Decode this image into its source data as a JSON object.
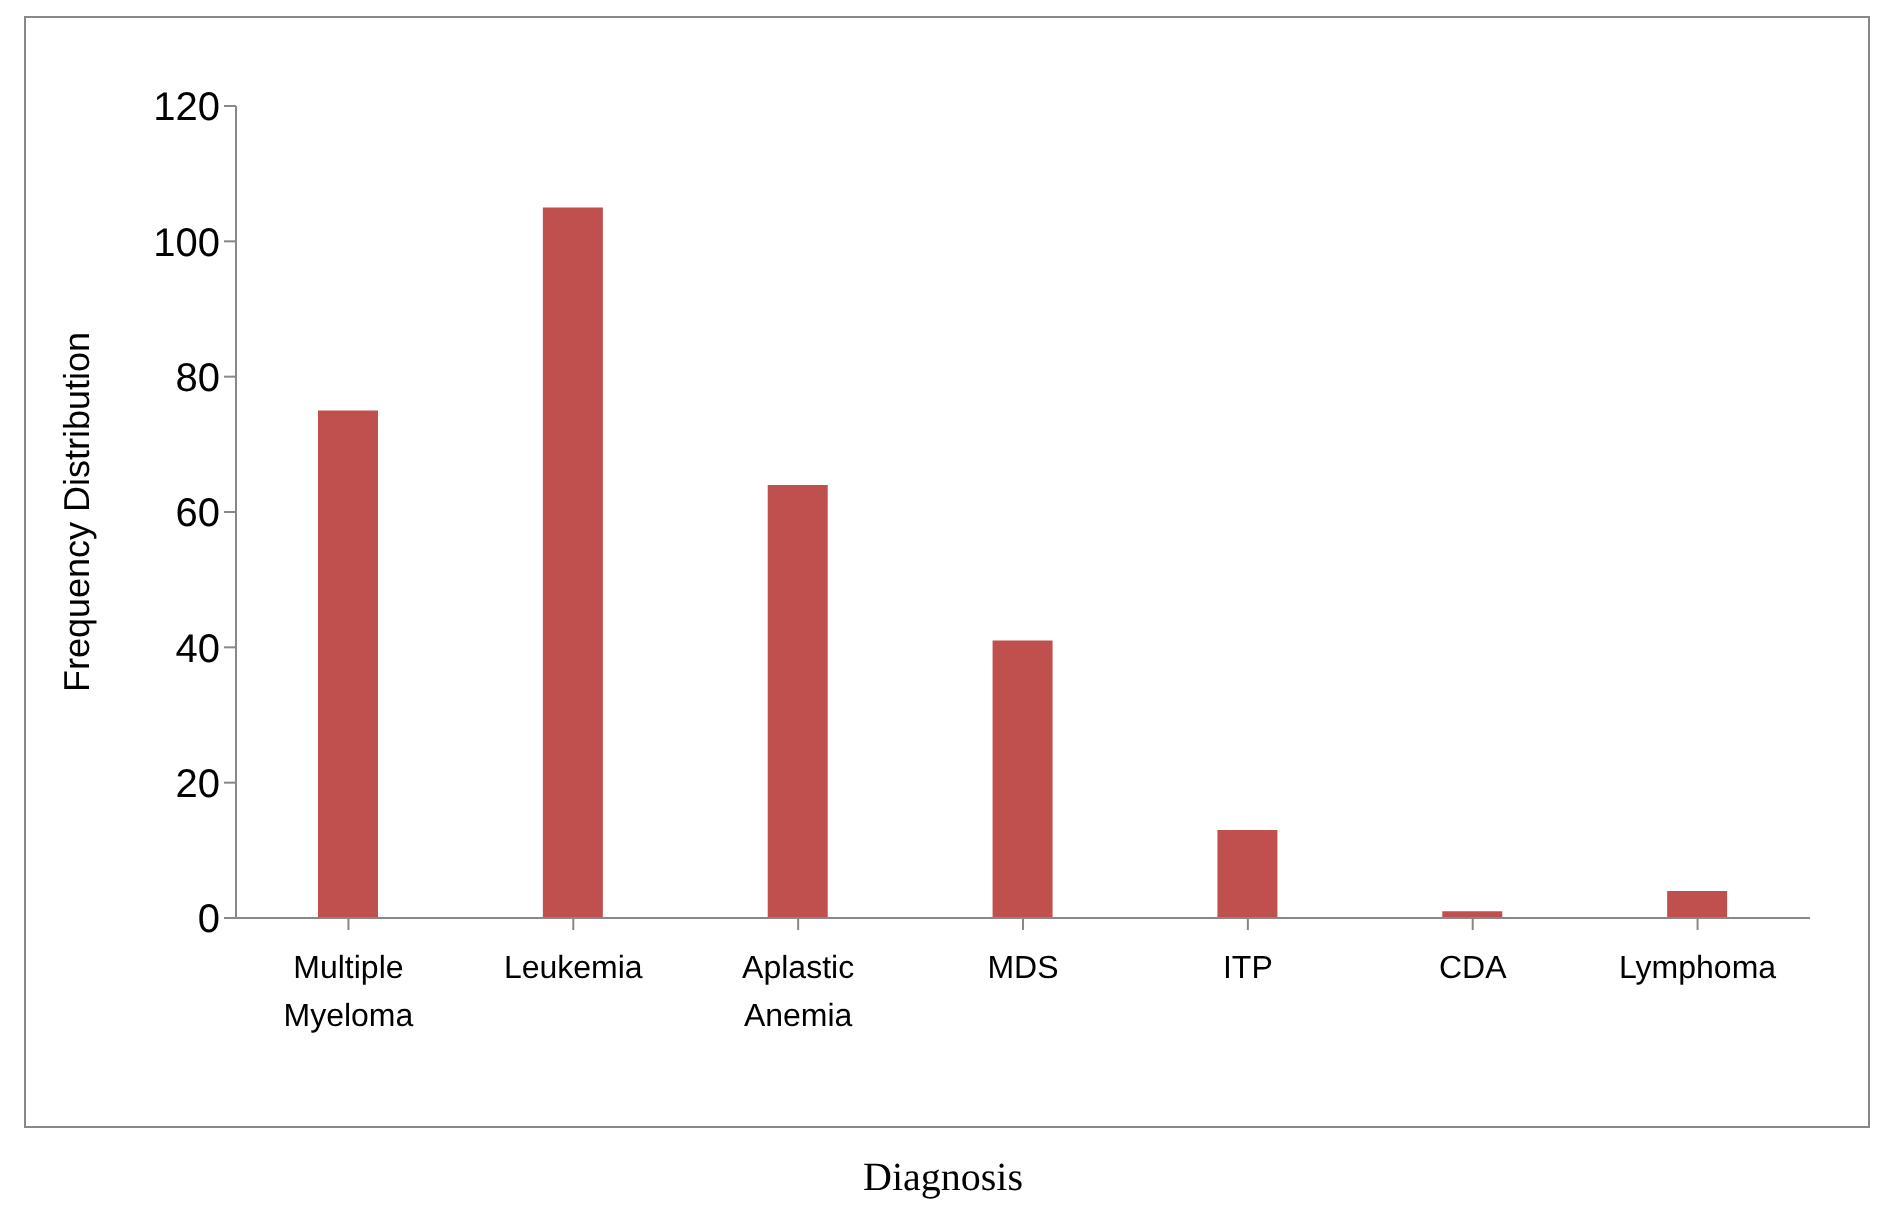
{
  "chart_data": {
    "type": "bar",
    "xlabel": "Diagnosis",
    "ylabel": "Frequency Distribution",
    "categories": [
      "Multiple Myeloma",
      "Leukemia",
      "Aplastic Anemia",
      "MDS",
      "ITP",
      "CDA",
      "Lymphoma"
    ],
    "values": [
      75,
      105,
      64,
      41,
      13,
      1,
      4
    ],
    "color": "#c0504d",
    "ylim": [
      0,
      120
    ],
    "yticks": [
      0,
      20,
      40,
      60,
      80,
      100,
      120
    ],
    "grid": false,
    "legend": false
  }
}
